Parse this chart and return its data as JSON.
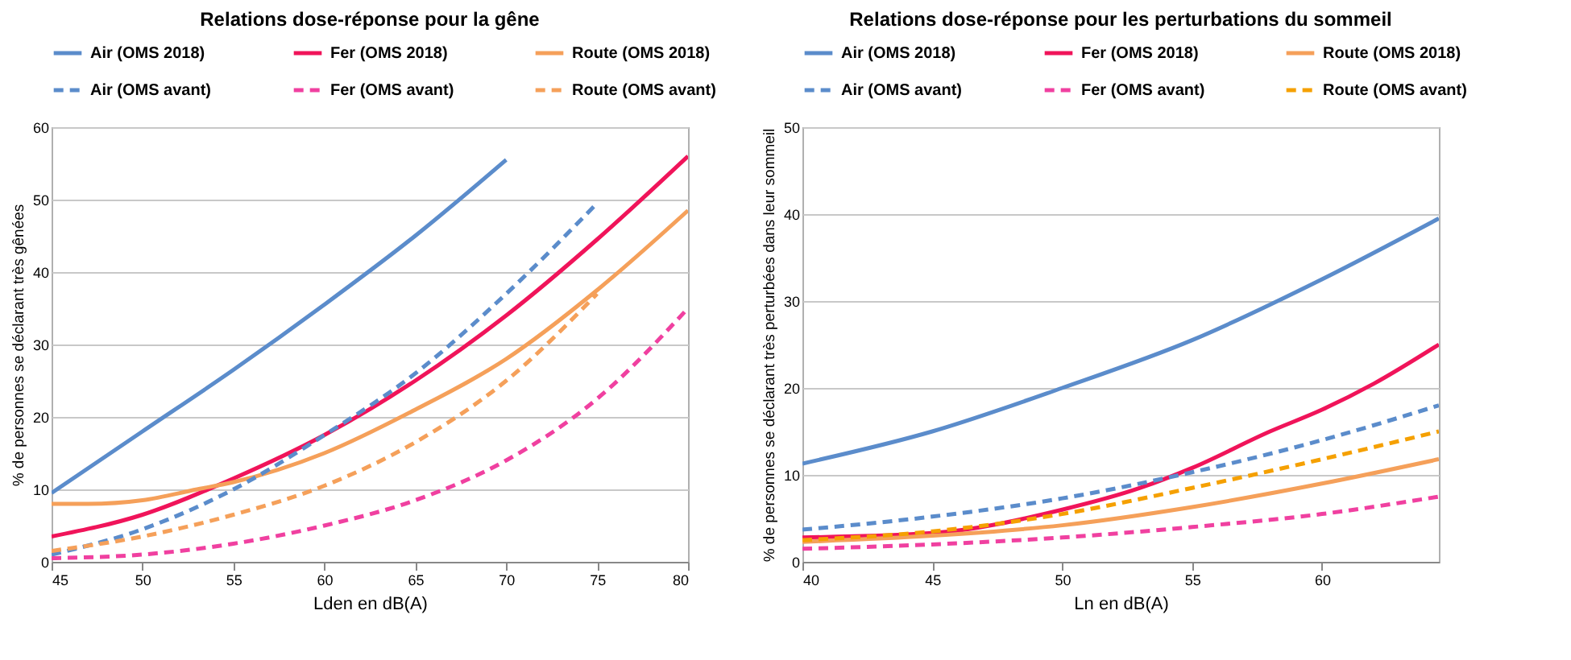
{
  "chart_data": [
    {
      "type": "line",
      "title": "Relations dose-réponse pour la gêne",
      "xlabel": "Lden en dB(A)",
      "ylabel": "% de personnes se déclarant très gênées",
      "xlim": [
        45,
        80
      ],
      "xticks": [
        45,
        50,
        55,
        60,
        65,
        70,
        75,
        80
      ],
      "ylim": [
        0,
        60
      ],
      "yticks": [
        0,
        10,
        20,
        30,
        40,
        50,
        60
      ],
      "grid": "y",
      "legend": "top",
      "marker": "none",
      "series": [
        {
          "name": "Air (OMS 2018)",
          "color": "#5b8ccb",
          "line_style": "solid",
          "x": [
            45,
            50,
            55,
            60,
            65,
            70
          ],
          "values": [
            9.5,
            18,
            26.5,
            35.5,
            45,
            55.5
          ]
        },
        {
          "name": "Fer (OMS 2018)",
          "color": "#f0145a",
          "line_style": "solid",
          "x": [
            45,
            50,
            55,
            60,
            65,
            70,
            75,
            80
          ],
          "values": [
            3.5,
            6.5,
            11.5,
            17.5,
            25,
            34,
            44.5,
            56
          ]
        },
        {
          "name": "Route (OMS 2018)",
          "color": "#f5a05a",
          "line_style": "solid",
          "x": [
            45,
            47,
            50,
            53,
            55,
            60,
            65,
            70,
            75,
            80
          ],
          "values": [
            8,
            8,
            8.5,
            10,
            11,
            15,
            21,
            28,
            37.5,
            48.5
          ]
        },
        {
          "name": "Air (OMS avant)",
          "color": "#5b8ccb",
          "line_style": "dashed",
          "x": [
            45,
            50,
            55,
            60,
            65,
            70,
            75
          ],
          "values": [
            1,
            4.5,
            10,
            17.5,
            26,
            37,
            49.5
          ]
        },
        {
          "name": "Fer (OMS avant)",
          "color": "#f040a0",
          "line_style": "dashed",
          "x": [
            45,
            50,
            55,
            60,
            65,
            70,
            75,
            80
          ],
          "values": [
            0.5,
            1,
            2.5,
            5,
            8.5,
            14,
            22.5,
            35
          ]
        },
        {
          "name": "Route (OMS avant)",
          "color": "#f5a05a",
          "line_style": "dashed",
          "x": [
            45,
            50,
            55,
            60,
            65,
            70,
            75
          ],
          "values": [
            1.5,
            3.5,
            6.5,
            10.5,
            16.5,
            25,
            37
          ]
        }
      ]
    },
    {
      "type": "line",
      "title": "Relations dose-réponse pour les perturbations du sommeil",
      "xlabel": "Ln en dB(A)",
      "ylabel": "% de personnes se déclarant très perturbées dans leur sommeil",
      "xlim": [
        40,
        64.5
      ],
      "xticks": [
        40,
        45,
        50,
        55,
        60
      ],
      "ylim": [
        0,
        50
      ],
      "yticks": [
        0,
        10,
        20,
        30,
        40,
        50
      ],
      "grid": "y",
      "legend": "top",
      "marker": "none",
      "series": [
        {
          "name": "Air (OMS 2018)",
          "color": "#5b8ccb",
          "line_style": "solid",
          "x": [
            40,
            45,
            50,
            55,
            60,
            64.5
          ],
          "values": [
            11.3,
            15,
            20,
            25.5,
            32.5,
            39.5
          ]
        },
        {
          "name": "Fer (OMS 2018)",
          "color": "#f0145a",
          "line_style": "solid",
          "x": [
            40,
            45,
            50,
            53,
            55,
            58,
            60,
            62,
            64.5
          ],
          "values": [
            2.8,
            3.3,
            6,
            8.5,
            10.8,
            15,
            17.5,
            20.5,
            25
          ]
        },
        {
          "name": "Route (OMS 2018)",
          "color": "#f5a05a",
          "line_style": "solid",
          "x": [
            40,
            45,
            50,
            55,
            60,
            64.5
          ],
          "values": [
            2.3,
            3,
            4.2,
            6.3,
            9,
            11.8
          ]
        },
        {
          "name": "Air (OMS avant)",
          "color": "#5b8ccb",
          "line_style": "dashed",
          "x": [
            40,
            45,
            50,
            55,
            60,
            64.5
          ],
          "values": [
            3.7,
            5.2,
            7.3,
            10.3,
            14,
            18
          ]
        },
        {
          "name": "Fer (OMS avant)",
          "color": "#f040a0",
          "line_style": "dashed",
          "x": [
            40,
            45,
            50,
            55,
            60,
            64.5
          ],
          "values": [
            1.5,
            2,
            2.8,
            4,
            5.5,
            7.5
          ]
        },
        {
          "name": "Route (OMS avant)",
          "color": "#f5a000",
          "line_style": "dashed",
          "x": [
            40,
            45,
            50,
            55,
            60,
            64.5
          ],
          "values": [
            2.5,
            3.5,
            5.5,
            8.5,
            11.8,
            15
          ]
        }
      ]
    }
  ]
}
